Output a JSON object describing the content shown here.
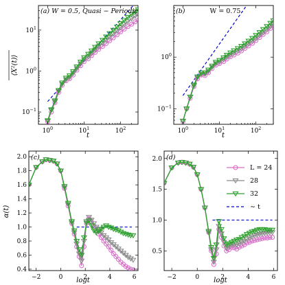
{
  "colors": {
    "L24": "#d86fc8",
    "L28": "#8a8a8a",
    "L32": "#2ca02c",
    "fit": "#0000cc"
  },
  "panels": {
    "a": {
      "label": "(a) W = 0.5,  Quasi − Periodic",
      "ylabel": "⟨X²(t)⟩",
      "xlabel": "t"
    },
    "b": {
      "label": "(b)",
      "title": "W = 0.75",
      "xlabel": "t"
    },
    "c": {
      "label": "(c)",
      "ylabel": "α(t)",
      "xlabel": "logt"
    },
    "d": {
      "label": "(d)",
      "xlabel": "logt"
    }
  },
  "legend": {
    "l24": "L = 24",
    "l28": "28",
    "l32": "32",
    "fit": "∼ t"
  },
  "chart_data": [
    {
      "panel": "a",
      "type": "line",
      "title": "(a) W = 0.5, Quasi-Periodic",
      "xlabel": "t",
      "ylabel": "<X^2(t)>",
      "xscale": "log",
      "yscale": "log",
      "xlim": [
        0.56,
        300
      ],
      "ylim": [
        0.05,
        40
      ],
      "xticks": [
        1,
        10,
        100
      ],
      "xtick_labels": [
        "10^0",
        "10^1",
        "10^2"
      ],
      "yticks": [
        0.1,
        1,
        10
      ],
      "ytick_labels": [
        "10^-1",
        "10^0",
        "10^1"
      ],
      "reference_line": {
        "name": "~t",
        "x": [
          1,
          300
        ],
        "y": [
          0.18,
          54
        ]
      },
      "series": [
        {
          "name": "L = 24",
          "x": [
            1,
            1.26,
            1.58,
            2,
            2.5,
            3.2,
            4,
            5,
            6.3,
            8,
            10,
            13,
            16,
            20,
            25,
            32,
            40,
            50,
            63,
            80,
            100,
            126,
            158,
            200,
            250,
            300
          ],
          "y": [
            0.058,
            0.1,
            0.17,
            0.3,
            0.45,
            0.58,
            0.65,
            0.8,
            1.05,
            1.35,
            1.7,
            2.0,
            2.4,
            2.85,
            3.4,
            4.0,
            4.7,
            5.5,
            6.5,
            7.7,
            9.1,
            10.6,
            12.2,
            14,
            16,
            17.5
          ]
        },
        {
          "name": "28",
          "x": [
            1,
            1.26,
            1.58,
            2,
            2.5,
            3.2,
            4,
            5,
            6.3,
            8,
            10,
            13,
            16,
            20,
            25,
            32,
            40,
            50,
            63,
            80,
            100,
            126,
            158,
            200,
            250,
            300
          ],
          "y": [
            0.06,
            0.11,
            0.18,
            0.32,
            0.48,
            0.62,
            0.7,
            0.88,
            1.15,
            1.5,
            1.9,
            2.25,
            2.75,
            3.3,
            4.0,
            4.8,
            5.7,
            6.8,
            8.1,
            9.7,
            11.6,
            13.8,
            16.2,
            19,
            22,
            24
          ]
        },
        {
          "name": "32",
          "x": [
            1,
            1.26,
            1.58,
            2,
            2.5,
            3.2,
            4,
            5,
            6.3,
            8,
            10,
            13,
            16,
            20,
            25,
            32,
            40,
            50,
            63,
            80,
            100,
            126,
            158,
            200,
            250,
            300
          ],
          "y": [
            0.062,
            0.115,
            0.19,
            0.34,
            0.52,
            0.68,
            0.78,
            0.98,
            1.28,
            1.68,
            2.15,
            2.6,
            3.15,
            3.85,
            4.7,
            5.7,
            6.9,
            8.3,
            10,
            12.1,
            14.6,
            17.5,
            20.8,
            24.5,
            28.5,
            32
          ]
        }
      ]
    },
    {
      "panel": "b",
      "type": "line",
      "title": "W = 0.75",
      "xlabel": "t",
      "xscale": "log",
      "yscale": "log",
      "xlim": [
        0.56,
        300
      ],
      "ylim": [
        0.05,
        10
      ],
      "xticks": [
        1,
        10,
        100
      ],
      "xtick_labels": [
        "10^0",
        "10^1",
        "10^2"
      ],
      "yticks": [
        0.1,
        1
      ],
      "ytick_labels": [
        "10^-1",
        "10^0"
      ],
      "reference_line": {
        "name": "~t",
        "x": [
          1,
          55
        ],
        "y": [
          0.18,
          9.9
        ]
      },
      "series": [
        {
          "name": "L = 24",
          "x": [
            1,
            1.26,
            1.58,
            2,
            2.5,
            3.2,
            4,
            5,
            6.3,
            8,
            10,
            13,
            16,
            20,
            25,
            32,
            40,
            50,
            63,
            80,
            100,
            126,
            158,
            200,
            250,
            300
          ],
          "y": [
            0.057,
            0.1,
            0.16,
            0.27,
            0.38,
            0.45,
            0.44,
            0.5,
            0.6,
            0.7,
            0.75,
            0.82,
            0.92,
            1.02,
            1.1,
            1.2,
            1.32,
            1.48,
            1.65,
            1.85,
            2.1,
            2.4,
            2.75,
            3.1,
            3.6,
            4.0
          ]
        },
        {
          "name": "28",
          "x": [
            1,
            1.26,
            1.58,
            2,
            2.5,
            3.2,
            4,
            5,
            6.3,
            8,
            10,
            13,
            16,
            20,
            25,
            32,
            40,
            50,
            63,
            80,
            100,
            126,
            158,
            200,
            250,
            300
          ],
          "y": [
            0.058,
            0.1,
            0.17,
            0.28,
            0.4,
            0.47,
            0.47,
            0.53,
            0.64,
            0.75,
            0.8,
            0.9,
            1.0,
            1.1,
            1.2,
            1.32,
            1.46,
            1.62,
            1.82,
            2.05,
            2.32,
            2.65,
            3.0,
            3.45,
            3.95,
            4.4
          ]
        },
        {
          "name": "32",
          "x": [
            1,
            1.26,
            1.58,
            2,
            2.5,
            3.2,
            4,
            5,
            6.3,
            8,
            10,
            13,
            16,
            20,
            25,
            32,
            40,
            50,
            63,
            80,
            100,
            126,
            158,
            200,
            250,
            300
          ],
          "y": [
            0.058,
            0.1,
            0.17,
            0.29,
            0.42,
            0.5,
            0.5,
            0.57,
            0.68,
            0.8,
            0.87,
            0.98,
            1.1,
            1.22,
            1.34,
            1.48,
            1.64,
            1.83,
            2.06,
            2.33,
            2.65,
            3.02,
            3.45,
            3.95,
            4.55,
            5.1
          ]
        }
      ]
    },
    {
      "panel": "c",
      "type": "line",
      "xlabel": "logt",
      "ylabel": "α(t)",
      "xlim": [
        -2.6,
        6.3
      ],
      "ylim": [
        0.38,
        2.08
      ],
      "xticks": [
        -2,
        0,
        2,
        4,
        6
      ],
      "yticks": [
        0.4,
        0.6,
        0.8,
        1.0,
        1.2,
        1.4,
        1.6,
        1.8,
        2.0
      ],
      "reference_line": {
        "name": "~t",
        "x": [
          1.3,
          5.8
        ],
        "y": [
          1.0,
          1.0
        ]
      },
      "series": [
        {
          "name": "L = 24",
          "x": [
            -2.6,
            -2,
            -1.5,
            -1.2,
            -0.9,
            -0.6,
            -0.3,
            0,
            0.3,
            0.6,
            0.9,
            1.1,
            1.3,
            1.5,
            1.7,
            1.9,
            2.1,
            2.3,
            2.5,
            2.7,
            2.9,
            3.1,
            3.3,
            3.5,
            3.7,
            3.9,
            4.1,
            4.3,
            4.5,
            4.7,
            4.9,
            5.1,
            5.3,
            5.5,
            5.7,
            5.9
          ],
          "y": [
            1.6,
            1.85,
            1.93,
            1.96,
            1.95,
            1.94,
            1.9,
            1.8,
            1.55,
            1.3,
            1.05,
            0.9,
            0.72,
            0.58,
            0.45,
            0.72,
            1.05,
            1.12,
            1.08,
            1.02,
            0.95,
            0.9,
            0.85,
            0.8,
            0.76,
            0.72,
            0.67,
            0.62,
            0.58,
            0.54,
            0.5,
            0.47,
            0.44,
            0.42,
            0.4,
            0.39
          ]
        },
        {
          "name": "28",
          "x": [
            -2.6,
            -2,
            -1.5,
            -1.2,
            -0.9,
            -0.6,
            -0.3,
            0,
            0.3,
            0.6,
            0.9,
            1.1,
            1.3,
            1.5,
            1.7,
            1.9,
            2.1,
            2.3,
            2.5,
            2.7,
            2.9,
            3.1,
            3.3,
            3.5,
            3.7,
            3.9,
            4.1,
            4.3,
            4.5,
            4.7,
            4.9,
            5.1,
            5.3,
            5.5,
            5.7,
            5.9
          ],
          "y": [
            1.6,
            1.85,
            1.93,
            1.96,
            1.95,
            1.94,
            1.9,
            1.8,
            1.56,
            1.32,
            1.06,
            0.92,
            0.76,
            0.62,
            0.52,
            0.8,
            1.08,
            1.14,
            1.1,
            1.05,
            1.0,
            0.96,
            0.92,
            0.88,
            0.85,
            0.82,
            0.78,
            0.75,
            0.72,
            0.69,
            0.66,
            0.63,
            0.6,
            0.57,
            0.55,
            0.53
          ]
        },
        {
          "name": "32",
          "x": [
            -2.6,
            -2,
            -1.5,
            -1.2,
            -0.9,
            -0.6,
            -0.3,
            0,
            0.3,
            0.6,
            0.9,
            1.1,
            1.3,
            1.5,
            1.7,
            1.9,
            2.1,
            2.3,
            2.5,
            2.7,
            2.9,
            3.1,
            3.3,
            3.5,
            3.7,
            3.9,
            4.1,
            4.3,
            4.5,
            4.7,
            4.9,
            5.1,
            5.3,
            5.5,
            5.7,
            5.9
          ],
          "y": [
            1.6,
            1.85,
            1.93,
            1.96,
            1.95,
            1.94,
            1.9,
            1.8,
            1.58,
            1.34,
            1.08,
            0.95,
            0.8,
            0.68,
            0.6,
            0.85,
            1.06,
            1.09,
            1.02,
            0.95,
            0.92,
            0.94,
            0.97,
            1.0,
            1.02,
            1.0,
            0.99,
            0.97,
            0.96,
            0.95,
            0.93,
            0.91,
            0.9,
            0.89,
            0.88,
            0.88
          ]
        }
      ]
    },
    {
      "panel": "d",
      "type": "line",
      "xlabel": "logt",
      "xlim": [
        -2.6,
        6.3
      ],
      "ylim": [
        0.18,
        2.12
      ],
      "xticks": [
        -2,
        0,
        2,
        4,
        6
      ],
      "yticks": [
        0.5,
        1.0,
        1.5,
        2.0
      ],
      "reference_line": {
        "name": "~t",
        "x": [
          1.2,
          5.9
        ],
        "y": [
          1.0,
          1.0
        ]
      },
      "series": [
        {
          "name": "L = 24",
          "x": [
            -2.6,
            -2,
            -1.5,
            -1.2,
            -0.9,
            -0.6,
            -0.3,
            0,
            0.3,
            0.6,
            0.9,
            1.1,
            1.3,
            1.5,
            1.7,
            1.9,
            2.1,
            2.3,
            2.5,
            2.7,
            2.9,
            3.1,
            3.3,
            3.5,
            3.7,
            3.9,
            4.1,
            4.3,
            4.5,
            4.7,
            4.9,
            5.1,
            5.3,
            5.5,
            5.7,
            5.9
          ],
          "y": [
            1.6,
            1.85,
            1.93,
            1.94,
            1.93,
            1.91,
            1.86,
            1.74,
            1.5,
            1.2,
            0.8,
            0.5,
            0.28,
            0.45,
            0.85,
            0.72,
            0.58,
            0.5,
            0.52,
            0.56,
            0.55,
            0.53,
            0.56,
            0.58,
            0.6,
            0.63,
            0.64,
            0.66,
            0.67,
            0.68,
            0.69,
            0.7,
            0.71,
            0.71,
            0.72,
            0.72
          ]
        },
        {
          "name": "28",
          "x": [
            -2.6,
            -2,
            -1.5,
            -1.2,
            -0.9,
            -0.6,
            -0.3,
            0,
            0.3,
            0.6,
            0.9,
            1.1,
            1.3,
            1.5,
            1.7,
            1.9,
            2.1,
            2.3,
            2.5,
            2.7,
            2.9,
            3.1,
            3.3,
            3.5,
            3.7,
            3.9,
            4.1,
            4.3,
            4.5,
            4.7,
            4.9,
            5.1,
            5.3,
            5.5,
            5.7,
            5.9
          ],
          "y": [
            1.6,
            1.85,
            1.93,
            1.94,
            1.93,
            1.91,
            1.86,
            1.74,
            1.5,
            1.2,
            0.8,
            0.52,
            0.32,
            0.52,
            0.9,
            0.78,
            0.64,
            0.55,
            0.57,
            0.6,
            0.6,
            0.6,
            0.62,
            0.64,
            0.66,
            0.69,
            0.71,
            0.73,
            0.75,
            0.76,
            0.77,
            0.78,
            0.79,
            0.79,
            0.8,
            0.8
          ]
        },
        {
          "name": "32",
          "x": [
            -2.6,
            -2,
            -1.5,
            -1.2,
            -0.9,
            -0.6,
            -0.3,
            0,
            0.3,
            0.6,
            0.9,
            1.1,
            1.3,
            1.5,
            1.7,
            1.9,
            2.1,
            2.3,
            2.5,
            2.7,
            2.9,
            3.1,
            3.3,
            3.5,
            3.7,
            3.9,
            4.1,
            4.3,
            4.5,
            4.7,
            4.9,
            5.1,
            5.3,
            5.5,
            5.7,
            5.9
          ],
          "y": [
            1.6,
            1.85,
            1.93,
            1.94,
            1.93,
            1.91,
            1.86,
            1.74,
            1.5,
            1.2,
            0.82,
            0.56,
            0.38,
            0.6,
            0.98,
            0.85,
            0.7,
            0.6,
            0.62,
            0.64,
            0.66,
            0.68,
            0.69,
            0.72,
            0.74,
            0.77,
            0.79,
            0.81,
            0.82,
            0.84,
            0.85,
            0.85,
            0.85,
            0.84,
            0.84,
            0.84
          ]
        }
      ]
    }
  ]
}
